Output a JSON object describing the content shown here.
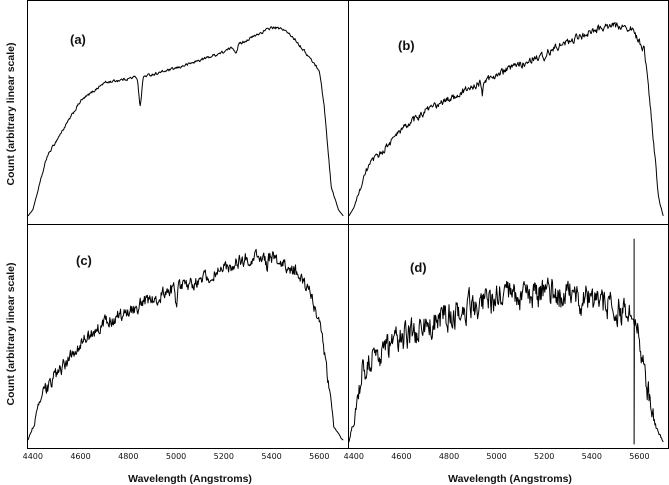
{
  "chart_data": {
    "type": "line",
    "layout": "2x2 grid",
    "xlabel": "Wavelength (Angstroms)",
    "ylabel": "Count (arbitrary linear scale)",
    "xlim": [
      4380,
      5720
    ],
    "xticks": [
      4400,
      4600,
      4800,
      5000,
      5200,
      5400,
      5600
    ],
    "xtick_labels": [
      "4400",
      "4600",
      "4800",
      "5000",
      "5200",
      "5400",
      "5600"
    ],
    "y_ticks_shown": false,
    "grid": false,
    "panels": [
      {
        "label": "(a)",
        "noise": 0.006,
        "dips": [
          [
            4850,
            0.14,
            8
          ],
          [
            5250,
            0.03,
            8
          ]
        ],
        "spike": null,
        "x": [
          4380,
          4400,
          4460,
          4500,
          4600,
          4700,
          4800,
          4840,
          4860,
          4900,
          5000,
          5100,
          5200,
          5300,
          5400,
          5450,
          5500,
          5600,
          5620,
          5650,
          5680,
          5700
        ],
        "y": [
          0.01,
          0.04,
          0.3,
          0.38,
          0.57,
          0.66,
          0.68,
          0.69,
          0.69,
          0.7,
          0.73,
          0.77,
          0.81,
          0.87,
          0.93,
          0.92,
          0.87,
          0.72,
          0.55,
          0.15,
          0.04,
          0.01
        ]
      },
      {
        "label": "(b)",
        "noise": 0.015,
        "dips": [
          [
            4940,
            0.06,
            5
          ],
          [
            5200,
            0.05,
            6
          ]
        ],
        "spike": null,
        "x": [
          4380,
          4400,
          4460,
          4500,
          4600,
          4700,
          4800,
          4900,
          5000,
          5100,
          5200,
          5300,
          5400,
          5460,
          5500,
          5560,
          5620,
          5650,
          5680,
          5700
        ],
        "y": [
          0.01,
          0.05,
          0.25,
          0.3,
          0.43,
          0.52,
          0.58,
          0.64,
          0.7,
          0.75,
          0.8,
          0.86,
          0.91,
          0.93,
          0.94,
          0.93,
          0.82,
          0.5,
          0.1,
          0.01
        ]
      },
      {
        "label": "(c)",
        "noise": 0.028,
        "dips": [
          [
            5000,
            0.08,
            6
          ],
          [
            5380,
            0.05,
            5
          ]
        ],
        "spike": null,
        "x": [
          4380,
          4400,
          4440,
          4500,
          4600,
          4700,
          4800,
          4900,
          5000,
          5100,
          5200,
          5300,
          5400,
          5500,
          5560,
          5600,
          5630,
          5660,
          5690,
          5700
        ],
        "y": [
          0.01,
          0.07,
          0.23,
          0.33,
          0.48,
          0.58,
          0.64,
          0.7,
          0.75,
          0.79,
          0.84,
          0.9,
          0.9,
          0.83,
          0.73,
          0.6,
          0.35,
          0.08,
          0.02,
          0.01
        ]
      },
      {
        "label": "(d)",
        "noise": 0.06,
        "dips": [],
        "spike": [
          5578,
          0.99
        ],
        "x": [
          4380,
          4400,
          4440,
          4500,
          4600,
          4700,
          4800,
          4900,
          5000,
          5100,
          5200,
          5300,
          5400,
          5500,
          5560,
          5600,
          5640,
          5670,
          5700
        ],
        "y": [
          0.0,
          0.12,
          0.37,
          0.43,
          0.5,
          0.56,
          0.62,
          0.67,
          0.7,
          0.71,
          0.72,
          0.71,
          0.69,
          0.66,
          0.6,
          0.5,
          0.22,
          0.07,
          0.0
        ]
      }
    ]
  }
}
